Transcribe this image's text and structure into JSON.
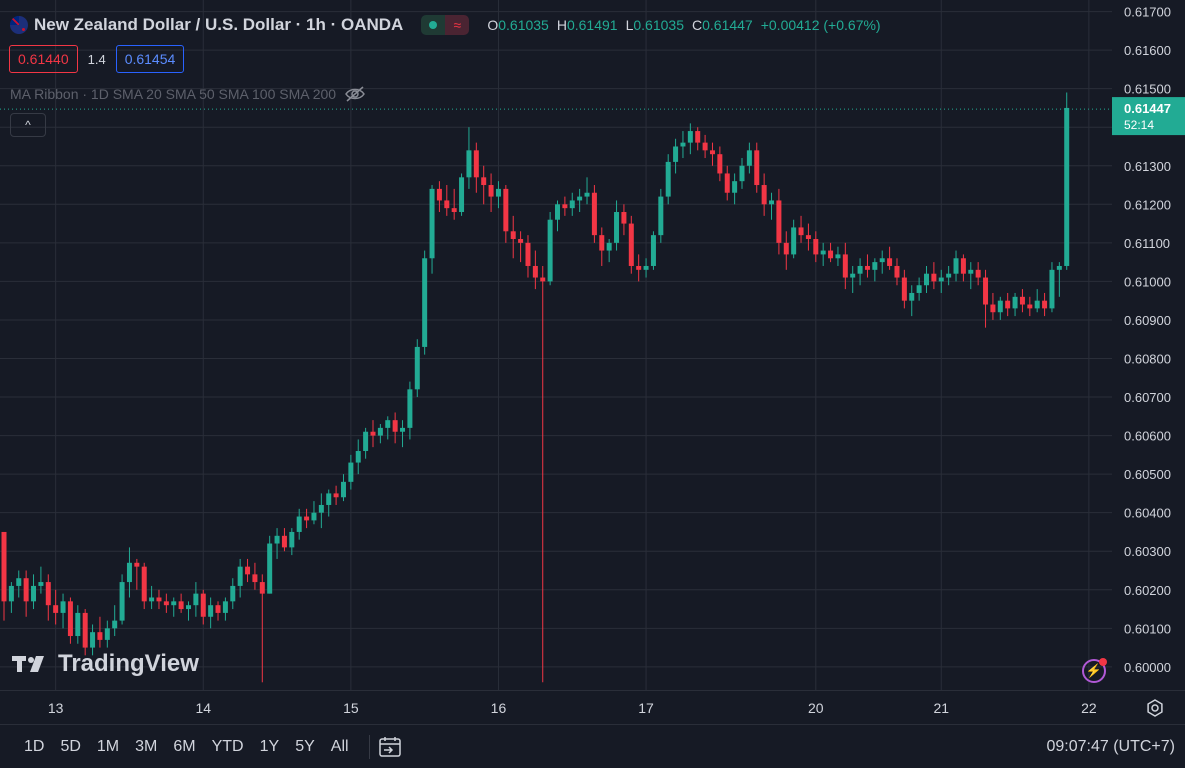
{
  "legend": {
    "title": "New Zealand Dollar / U.S. Dollar · 1h · OANDA",
    "o_label": "O",
    "o_value": "0.61035",
    "h_label": "H",
    "h_value": "0.61491",
    "l_label": "L",
    "l_value": "0.61035",
    "c_label": "C",
    "c_value": "0.61447",
    "change": "+0.00412 (+0.67%)",
    "live_icon": "circle-icon",
    "wave_icon": "≈"
  },
  "trade": {
    "sell": "0.61440",
    "spread": "1.4",
    "buy": "0.61454"
  },
  "indicator": {
    "label": "MA Ribbon · 1D SMA 20 SMA 50 SMA 100 SMA 200"
  },
  "collapse_icon": "^",
  "watermark": "TradingView",
  "current_price": {
    "price": "0.61447",
    "countdown": "52:14"
  },
  "ranges": [
    "1D",
    "5D",
    "1M",
    "3M",
    "6M",
    "YTD",
    "1Y",
    "5Y",
    "All"
  ],
  "clock": "09:07:47 (UTC+7)",
  "colors": {
    "up": "#22ab94",
    "down": "#f23645",
    "bg": "#161a25",
    "grid": "#2a2e39"
  },
  "chart_data": {
    "type": "candlestick",
    "title": "New Zealand Dollar / U.S. Dollar · 1h · OANDA",
    "ylim": [
      0.5994,
      0.6173
    ],
    "yticks": [
      "0.61700",
      "0.61600",
      "0.61500",
      "0.61400",
      "0.61300",
      "0.61200",
      "0.61100",
      "0.61000",
      "0.60900",
      "0.60800",
      "0.60700",
      "0.60600",
      "0.60500",
      "0.60400",
      "0.60300",
      "0.60200",
      "0.60100",
      "0.60000"
    ],
    "xticks": [
      {
        "label": "13",
        "index": 7
      },
      {
        "label": "14",
        "index": 27
      },
      {
        "label": "15",
        "index": 47
      },
      {
        "label": "16",
        "index": 67
      },
      {
        "label": "17",
        "index": 87
      },
      {
        "label": "20",
        "index": 110
      },
      {
        "label": "21",
        "index": 127
      },
      {
        "label": "22",
        "index": 147
      }
    ],
    "current_price": 0.61447,
    "candles": [
      [
        0.6035,
        0.6035,
        0.6012,
        0.6017
      ],
      [
        0.6017,
        0.6022,
        0.6014,
        0.6021
      ],
      [
        0.6021,
        0.6025,
        0.6018,
        0.6023
      ],
      [
        0.6023,
        0.6025,
        0.6013,
        0.6017
      ],
      [
        0.6017,
        0.6024,
        0.6015,
        0.6021
      ],
      [
        0.6021,
        0.6026,
        0.6019,
        0.6022
      ],
      [
        0.6022,
        0.6024,
        0.6012,
        0.6016
      ],
      [
        0.6016,
        0.602,
        0.6011,
        0.6014
      ],
      [
        0.6014,
        0.6019,
        0.601,
        0.6017
      ],
      [
        0.6017,
        0.6018,
        0.6006,
        0.6008
      ],
      [
        0.6008,
        0.6016,
        0.6006,
        0.6014
      ],
      [
        0.6014,
        0.6015,
        0.6003,
        0.6005
      ],
      [
        0.6005,
        0.6011,
        0.6003,
        0.6009
      ],
      [
        0.6009,
        0.6013,
        0.6005,
        0.6007
      ],
      [
        0.6007,
        0.6012,
        0.6005,
        0.601
      ],
      [
        0.601,
        0.6016,
        0.6008,
        0.6012
      ],
      [
        0.6012,
        0.6024,
        0.6011,
        0.6022
      ],
      [
        0.6022,
        0.6031,
        0.6018,
        0.6027
      ],
      [
        0.6027,
        0.6028,
        0.602,
        0.6026
      ],
      [
        0.6026,
        0.6027,
        0.6015,
        0.6017
      ],
      [
        0.6017,
        0.6021,
        0.6015,
        0.6018
      ],
      [
        0.6018,
        0.602,
        0.6015,
        0.6017
      ],
      [
        0.6017,
        0.6019,
        0.6014,
        0.6016
      ],
      [
        0.6016,
        0.6018,
        0.6013,
        0.6017
      ],
      [
        0.6017,
        0.6019,
        0.6014,
        0.6015
      ],
      [
        0.6015,
        0.6017,
        0.6012,
        0.6016
      ],
      [
        0.6016,
        0.6022,
        0.6013,
        0.6019
      ],
      [
        0.6019,
        0.602,
        0.6011,
        0.6013
      ],
      [
        0.6013,
        0.6018,
        0.601,
        0.6016
      ],
      [
        0.6016,
        0.6017,
        0.6012,
        0.6014
      ],
      [
        0.6014,
        0.6018,
        0.6012,
        0.6017
      ],
      [
        0.6017,
        0.6023,
        0.6015,
        0.6021
      ],
      [
        0.6021,
        0.6028,
        0.6018,
        0.6026
      ],
      [
        0.6026,
        0.6028,
        0.6022,
        0.6024
      ],
      [
        0.6024,
        0.6027,
        0.602,
        0.6022
      ],
      [
        0.6022,
        0.6024,
        0.5996,
        0.6019
      ],
      [
        0.6019,
        0.6034,
        0.6019,
        0.6032
      ],
      [
        0.6032,
        0.6036,
        0.6028,
        0.6034
      ],
      [
        0.6034,
        0.6036,
        0.603,
        0.6031
      ],
      [
        0.6031,
        0.6036,
        0.6029,
        0.6035
      ],
      [
        0.6035,
        0.6041,
        0.6033,
        0.6039
      ],
      [
        0.6039,
        0.6041,
        0.6036,
        0.6038
      ],
      [
        0.6038,
        0.6043,
        0.6037,
        0.604
      ],
      [
        0.604,
        0.6045,
        0.6036,
        0.6042
      ],
      [
        0.6042,
        0.6046,
        0.6039,
        0.6045
      ],
      [
        0.6045,
        0.6047,
        0.6042,
        0.6044
      ],
      [
        0.6044,
        0.605,
        0.6043,
        0.6048
      ],
      [
        0.6048,
        0.6055,
        0.6046,
        0.6053
      ],
      [
        0.6053,
        0.6059,
        0.605,
        0.6056
      ],
      [
        0.6056,
        0.6062,
        0.6054,
        0.6061
      ],
      [
        0.6061,
        0.6064,
        0.6057,
        0.606
      ],
      [
        0.606,
        0.6063,
        0.6058,
        0.6062
      ],
      [
        0.6062,
        0.6065,
        0.6059,
        0.6064
      ],
      [
        0.6064,
        0.6066,
        0.6058,
        0.6061
      ],
      [
        0.6061,
        0.6064,
        0.6057,
        0.6062
      ],
      [
        0.6062,
        0.6074,
        0.6059,
        0.6072
      ],
      [
        0.6072,
        0.6085,
        0.607,
        0.6083
      ],
      [
        0.6083,
        0.6108,
        0.6081,
        0.6106
      ],
      [
        0.6106,
        0.6125,
        0.6102,
        0.6124
      ],
      [
        0.6124,
        0.6126,
        0.6118,
        0.6121
      ],
      [
        0.6121,
        0.6125,
        0.6117,
        0.6119
      ],
      [
        0.6119,
        0.6124,
        0.6116,
        0.6118
      ],
      [
        0.6118,
        0.6128,
        0.6117,
        0.6127
      ],
      [
        0.6127,
        0.614,
        0.6124,
        0.6134
      ],
      [
        0.6134,
        0.6136,
        0.6123,
        0.6127
      ],
      [
        0.6127,
        0.613,
        0.612,
        0.6125
      ],
      [
        0.6125,
        0.6128,
        0.6118,
        0.6122
      ],
      [
        0.6122,
        0.6126,
        0.6119,
        0.6124
      ],
      [
        0.6124,
        0.6125,
        0.611,
        0.6113
      ],
      [
        0.6113,
        0.6117,
        0.6106,
        0.6111
      ],
      [
        0.6111,
        0.6113,
        0.6105,
        0.611
      ],
      [
        0.611,
        0.6112,
        0.6101,
        0.6104
      ],
      [
        0.6104,
        0.6108,
        0.6098,
        0.6101
      ],
      [
        0.6101,
        0.6104,
        0.5996,
        0.61
      ],
      [
        0.61,
        0.6118,
        0.6099,
        0.6116
      ],
      [
        0.6116,
        0.6121,
        0.6113,
        0.612
      ],
      [
        0.612,
        0.6122,
        0.6117,
        0.6119
      ],
      [
        0.6119,
        0.6123,
        0.6117,
        0.6121
      ],
      [
        0.6121,
        0.6124,
        0.6118,
        0.6122
      ],
      [
        0.6122,
        0.6127,
        0.612,
        0.6123
      ],
      [
        0.6123,
        0.6125,
        0.611,
        0.6112
      ],
      [
        0.6112,
        0.6114,
        0.6104,
        0.6108
      ],
      [
        0.6108,
        0.6111,
        0.6105,
        0.611
      ],
      [
        0.611,
        0.6121,
        0.6108,
        0.6118
      ],
      [
        0.6118,
        0.612,
        0.6112,
        0.6115
      ],
      [
        0.6115,
        0.6117,
        0.6102,
        0.6104
      ],
      [
        0.6104,
        0.6107,
        0.61,
        0.6103
      ],
      [
        0.6103,
        0.6106,
        0.6101,
        0.6104
      ],
      [
        0.6104,
        0.6113,
        0.6103,
        0.6112
      ],
      [
        0.6112,
        0.6124,
        0.611,
        0.6122
      ],
      [
        0.6122,
        0.6133,
        0.612,
        0.6131
      ],
      [
        0.6131,
        0.6137,
        0.6128,
        0.6135
      ],
      [
        0.6135,
        0.6139,
        0.6132,
        0.6136
      ],
      [
        0.6136,
        0.6141,
        0.6133,
        0.6139
      ],
      [
        0.6139,
        0.614,
        0.6134,
        0.6136
      ],
      [
        0.6136,
        0.6138,
        0.6132,
        0.6134
      ],
      [
        0.6134,
        0.6136,
        0.613,
        0.6133
      ],
      [
        0.6133,
        0.6135,
        0.6126,
        0.6128
      ],
      [
        0.6128,
        0.613,
        0.6121,
        0.6123
      ],
      [
        0.6123,
        0.6128,
        0.612,
        0.6126
      ],
      [
        0.6126,
        0.6132,
        0.6124,
        0.613
      ],
      [
        0.613,
        0.6136,
        0.6128,
        0.6134
      ],
      [
        0.6134,
        0.6136,
        0.6123,
        0.6125
      ],
      [
        0.6125,
        0.6128,
        0.6117,
        0.612
      ],
      [
        0.612,
        0.6123,
        0.6116,
        0.6121
      ],
      [
        0.6121,
        0.6124,
        0.6107,
        0.611
      ],
      [
        0.611,
        0.6113,
        0.6103,
        0.6107
      ],
      [
        0.6107,
        0.6116,
        0.6106,
        0.6114
      ],
      [
        0.6114,
        0.6117,
        0.611,
        0.6112
      ],
      [
        0.6112,
        0.6115,
        0.6108,
        0.6111
      ],
      [
        0.6111,
        0.6113,
        0.6105,
        0.6107
      ],
      [
        0.6107,
        0.611,
        0.6104,
        0.6108
      ],
      [
        0.6108,
        0.611,
        0.6105,
        0.6106
      ],
      [
        0.6106,
        0.6109,
        0.6104,
        0.6107
      ],
      [
        0.6107,
        0.611,
        0.6098,
        0.6101
      ],
      [
        0.6101,
        0.6104,
        0.6097,
        0.6102
      ],
      [
        0.6102,
        0.6106,
        0.6099,
        0.6104
      ],
      [
        0.6104,
        0.6107,
        0.6101,
        0.6103
      ],
      [
        0.6103,
        0.6106,
        0.61,
        0.6105
      ],
      [
        0.6105,
        0.6108,
        0.6102,
        0.6106
      ],
      [
        0.6106,
        0.6109,
        0.6103,
        0.6104
      ],
      [
        0.6104,
        0.6106,
        0.6099,
        0.6101
      ],
      [
        0.6101,
        0.6103,
        0.6093,
        0.6095
      ],
      [
        0.6095,
        0.6099,
        0.6091,
        0.6097
      ],
      [
        0.6097,
        0.6101,
        0.6095,
        0.6099
      ],
      [
        0.6099,
        0.6104,
        0.6097,
        0.6102
      ],
      [
        0.6102,
        0.6105,
        0.6098,
        0.61
      ],
      [
        0.61,
        0.6103,
        0.6097,
        0.6101
      ],
      [
        0.6101,
        0.6104,
        0.6099,
        0.6102
      ],
      [
        0.6102,
        0.6108,
        0.61,
        0.6106
      ],
      [
        0.6106,
        0.6107,
        0.61,
        0.6102
      ],
      [
        0.6102,
        0.6105,
        0.6098,
        0.6103
      ],
      [
        0.6103,
        0.6105,
        0.6099,
        0.6101
      ],
      [
        0.6101,
        0.6103,
        0.6088,
        0.6094
      ],
      [
        0.6094,
        0.6097,
        0.609,
        0.6092
      ],
      [
        0.6092,
        0.6096,
        0.609,
        0.6095
      ],
      [
        0.6095,
        0.6097,
        0.6091,
        0.6093
      ],
      [
        0.6093,
        0.6097,
        0.6091,
        0.6096
      ],
      [
        0.6096,
        0.6098,
        0.6092,
        0.6094
      ],
      [
        0.6094,
        0.6096,
        0.6091,
        0.6093
      ],
      [
        0.6093,
        0.6098,
        0.6092,
        0.6095
      ],
      [
        0.6095,
        0.6097,
        0.6091,
        0.6093
      ],
      [
        0.6093,
        0.6105,
        0.6092,
        0.6103
      ],
      [
        0.6103,
        0.6105,
        0.6096,
        0.6104
      ],
      [
        0.6104,
        0.6149,
        0.6103,
        0.6145
      ]
    ]
  }
}
